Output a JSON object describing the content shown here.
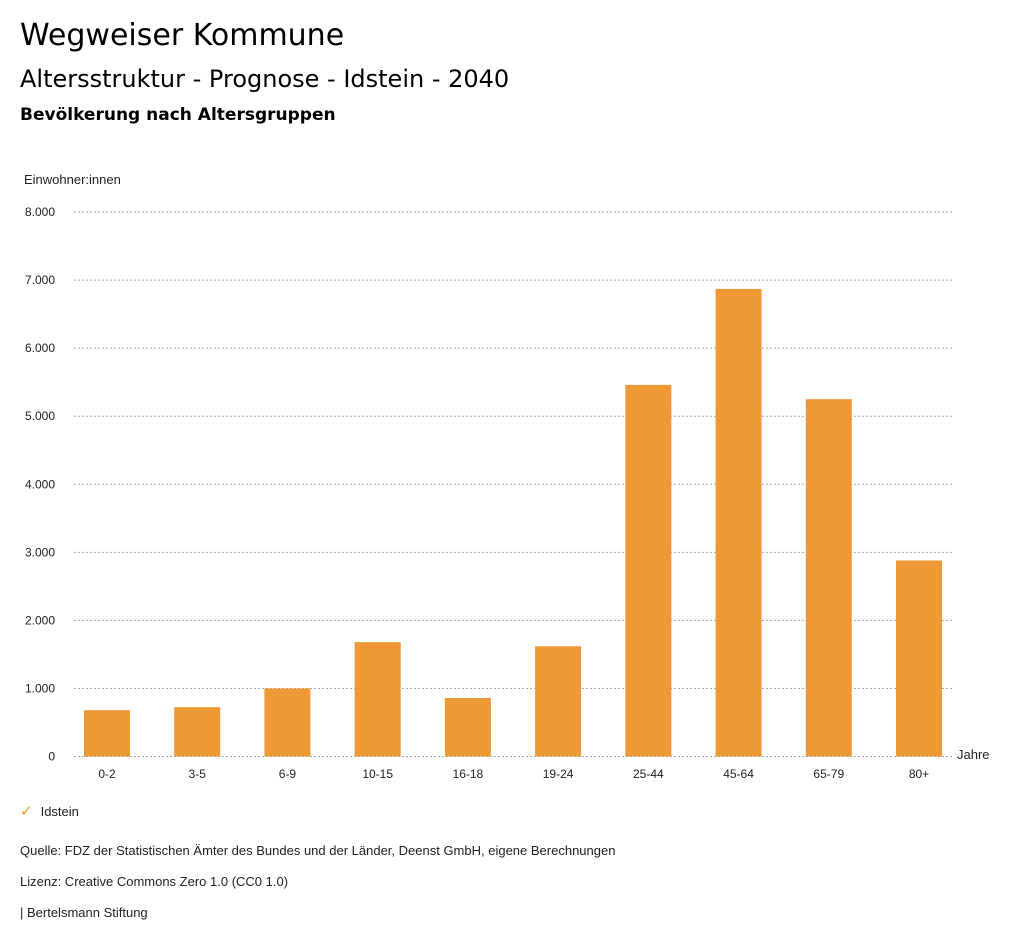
{
  "header": {
    "title": "Wegweiser Kommune",
    "subtitle": "Altersstruktur - Prognose - Idstein - 2040",
    "chart_title": "Bevölkerung nach Altersgruppen"
  },
  "legend": {
    "icon": "check-icon",
    "label": "Idstein",
    "color": "#ee9935"
  },
  "footer": {
    "source": "Quelle: FDZ der Statistischen Ämter des Bundes und der Länder, Deenst GmbH, eigene Berechnungen",
    "license": "Lizenz: Creative Commons Zero 1.0 (CC0 1.0)",
    "publisher": "| Bertelsmann Stiftung"
  },
  "chart_data": {
    "type": "bar",
    "title": "Bevölkerung nach Altersgruppen",
    "ylabel": "Einwohner:innen",
    "xlabel": "Jahre",
    "ylim": [
      0,
      8000
    ],
    "yticks": [
      0,
      1000,
      2000,
      3000,
      4000,
      5000,
      6000,
      7000,
      8000
    ],
    "ytick_labels": [
      "0",
      "1.000",
      "2.000",
      "3.000",
      "4.000",
      "5.000",
      "6.000",
      "7.000",
      "8.000"
    ],
    "categories": [
      "0-2",
      "3-5",
      "6-9",
      "10-15",
      "16-18",
      "19-24",
      "25-44",
      "45-64",
      "65-79",
      "80+"
    ],
    "series": [
      {
        "name": "Idstein",
        "color": "#ee9935",
        "values": [
          680,
          725,
          1000,
          1680,
          860,
          1620,
          5460,
          6870,
          5250,
          2880
        ]
      }
    ],
    "grid": true,
    "legend_position": "bottom-left"
  }
}
